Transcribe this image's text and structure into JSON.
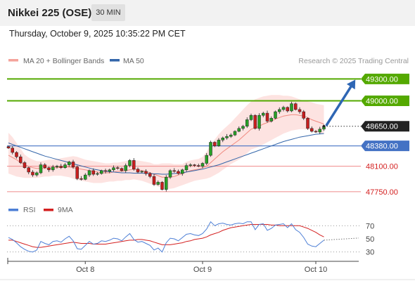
{
  "header": {
    "title": "Nikkei 225 (OSE)",
    "timeframe": "30 MIN",
    "datetime": "Thursday, October 9, 2025 10:35:22 PM CET"
  },
  "legend": {
    "bb_label": "MA 20 + Bollinger Bands",
    "ma50_label": "MA 50",
    "credit": "Research © 2025 Trading Central",
    "rsi_label": "RSI",
    "rsi_ma_label": "9MA"
  },
  "colors": {
    "candle_up": "#27a127",
    "candle_down": "#c81e1e",
    "bb_fill": "#fde3e1",
    "bb_line": "#f08a80",
    "ma50": "#3366aa",
    "target_line": "#54a900",
    "level_blue": "#4472c4",
    "level_red": "#ef8a8a",
    "arrow": "#2e66b4",
    "rsi_line": "#4d7fd6",
    "rsi_ma": "#d42020"
  },
  "chart_data": {
    "type": "candlestick",
    "price_range": [
      47720,
      49420
    ],
    "levels": [
      {
        "value": 49300,
        "label": "49300.00",
        "kind": "resistance"
      },
      {
        "value": 49000,
        "label": "49000.00",
        "kind": "resistance"
      },
      {
        "value": 48650,
        "label": "48650.00",
        "kind": "last"
      },
      {
        "value": 48380,
        "label": "48380.00",
        "kind": "pivot"
      },
      {
        "value": 48100,
        "label": "48100.00",
        "kind": "support"
      },
      {
        "value": 47750,
        "label": "47750.00",
        "kind": "support"
      }
    ],
    "x_labels": [
      "Oct 8",
      "Oct 9",
      "Oct 10"
    ],
    "x_label_index": [
      19,
      48,
      76
    ],
    "total_slots": 86,
    "close": [
      48350,
      48290,
      48230,
      48150,
      48080,
      48020,
      47980,
      48010,
      48120,
      48080,
      48050,
      48090,
      48100,
      48080,
      48120,
      48160,
      48090,
      47930,
      47920,
      47980,
      48040,
      47990,
      48000,
      48040,
      48030,
      48050,
      48080,
      48070,
      48040,
      48110,
      48180,
      48060,
      48020,
      48030,
      48000,
      47960,
      47850,
      47880,
      47780,
      47950,
      48040,
      48030,
      48000,
      48050,
      48110,
      48120,
      48110,
      48100,
      48140,
      48250,
      48430,
      48380,
      48460,
      48490,
      48510,
      48530,
      48580,
      48620,
      48650,
      48740,
      48800,
      48620,
      48800,
      48830,
      48720,
      48760,
      48850,
      48880,
      48910,
      48860,
      48960,
      48880,
      48850,
      48760,
      48620,
      48580,
      48570,
      48610,
      48650
    ],
    "bb_mid": [
      48250,
      48220,
      48190,
      48150,
      48120,
      48100,
      48080,
      48070,
      48070,
      48070,
      48070,
      48080,
      48080,
      48090,
      48090,
      48090,
      48080,
      48070,
      48060,
      48050,
      48040,
      48030,
      48020,
      48010,
      48010,
      48010,
      48020,
      48030,
      48030,
      48040,
      48050,
      48060,
      48050,
      48040,
      48030,
      48010,
      47990,
      47970,
      47950,
      47950,
      47950,
      47960,
      47980,
      48000,
      48020,
      48040,
      48050,
      48060,
      48080,
      48100,
      48150,
      48200,
      48250,
      48300,
      48340,
      48380,
      48420,
      48460,
      48510,
      48560,
      48610,
      48630,
      48650,
      48680,
      48700,
      48720,
      48750,
      48770,
      48790,
      48800,
      48810,
      48810,
      48800,
      48790,
      48770,
      48740,
      48720,
      48700,
      48680
    ],
    "bb_upper": [
      48560,
      48500,
      48420,
      48340,
      48260,
      48220,
      48190,
      48170,
      48170,
      48180,
      48190,
      48190,
      48200,
      48210,
      48220,
      48230,
      48240,
      48230,
      48210,
      48190,
      48180,
      48170,
      48160,
      48150,
      48140,
      48140,
      48150,
      48150,
      48160,
      48170,
      48180,
      48180,
      48180,
      48170,
      48160,
      48150,
      48130,
      48130,
      48140,
      48140,
      48140,
      48130,
      48130,
      48130,
      48160,
      48180,
      48190,
      48200,
      48230,
      48300,
      48400,
      48470,
      48540,
      48600,
      48650,
      48700,
      48760,
      48820,
      48880,
      48940,
      48990,
      49020,
      49040,
      49060,
      49070,
      49080,
      49080,
      49080,
      49070,
      49070,
      49060,
      49040,
      49020,
      49000,
      48990,
      48980,
      48960,
      48950,
      48940
    ],
    "bb_lower": [
      48000,
      47980,
      47960,
      47950,
      47940,
      47940,
      47940,
      47940,
      47950,
      47960,
      47960,
      47970,
      47970,
      47970,
      47960,
      47950,
      47930,
      47910,
      47900,
      47890,
      47880,
      47870,
      47870,
      47870,
      47880,
      47890,
      47890,
      47900,
      47900,
      47910,
      47910,
      47920,
      47910,
      47900,
      47880,
      47860,
      47840,
      47820,
      47800,
      47790,
      47790,
      47800,
      47820,
      47840,
      47860,
      47880,
      47900,
      47910,
      47920,
      47930,
      47950,
      47980,
      48010,
      48050,
      48090,
      48130,
      48160,
      48190,
      48230,
      48280,
      48330,
      48350,
      48370,
      48400,
      48430,
      48460,
      48490,
      48520,
      48550,
      48570,
      48590,
      48600,
      48610,
      48610,
      48600,
      48590,
      48580,
      48560,
      48540
    ],
    "ma50": [
      48420,
      48400,
      48380,
      48360,
      48340,
      48320,
      48300,
      48280,
      48260,
      48240,
      48225,
      48210,
      48195,
      48180,
      48165,
      48150,
      48135,
      48120,
      48105,
      48090,
      48075,
      48060,
      48050,
      48040,
      48030,
      48025,
      48020,
      48015,
      48010,
      48010,
      48010,
      48005,
      48005,
      48005,
      48000,
      48000,
      47995,
      47995,
      47990,
      47990,
      47995,
      48000,
      48005,
      48010,
      48020,
      48030,
      48040,
      48050,
      48060,
      48075,
      48090,
      48105,
      48120,
      48140,
      48160,
      48180,
      48200,
      48220,
      48240,
      48260,
      48280,
      48300,
      48320,
      48340,
      48360,
      48380,
      48400,
      48420,
      48440,
      48455,
      48470,
      48485,
      48500,
      48510,
      48520,
      48530,
      48540,
      48545,
      48550
    ],
    "rsi_range": [
      20,
      80
    ],
    "rsi_ticks": [
      70,
      50,
      30
    ],
    "rsi": [
      52,
      49,
      44,
      38,
      34,
      31,
      30,
      33,
      46,
      43,
      41,
      46,
      47,
      45,
      50,
      54,
      47,
      35,
      34,
      40,
      46,
      42,
      43,
      47,
      46,
      48,
      51,
      50,
      47,
      53,
      58,
      49,
      45,
      46,
      43,
      40,
      33,
      36,
      30,
      44,
      51,
      50,
      47,
      52,
      57,
      58,
      56,
      55,
      58,
      65,
      76,
      70,
      73,
      74,
      72,
      71,
      73,
      74,
      73,
      76,
      76,
      64,
      72,
      73,
      63,
      66,
      71,
      72,
      73,
      67,
      73,
      64,
      60,
      52,
      42,
      39,
      38,
      43,
      48
    ],
    "rsi_9ma": [
      48,
      48,
      46,
      44,
      42,
      40,
      38,
      37,
      37,
      38,
      39,
      40,
      41,
      42,
      43,
      44,
      45,
      44,
      43,
      43,
      43,
      42,
      42,
      42,
      42,
      43,
      44,
      45,
      46,
      47,
      48,
      48,
      49,
      49,
      48,
      47,
      45,
      43,
      41,
      41,
      41,
      42,
      43,
      44,
      46,
      47,
      49,
      50,
      51,
      53,
      56,
      58,
      60,
      63,
      65,
      67,
      68,
      69,
      70,
      71,
      72,
      72,
      72,
      72,
      72,
      71,
      71,
      70,
      70,
      70,
      70,
      70,
      70,
      68,
      66,
      63,
      60,
      56,
      53
    ]
  }
}
